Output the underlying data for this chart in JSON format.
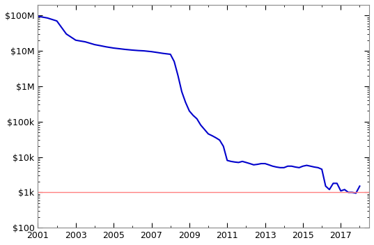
{
  "title": "",
  "line_color": "#0000cc",
  "ref_line_color": "#ff8080",
  "ref_line_value": 1000,
  "background_color": "#ffffff",
  "xlim": [
    2001,
    2018.5
  ],
  "ylim": [
    100,
    200000000
  ],
  "xticks": [
    2001,
    2003,
    2005,
    2007,
    2009,
    2011,
    2013,
    2015,
    2017
  ],
  "ytick_labels": [
    "$100",
    "$1k",
    "$10k",
    "$100k",
    "$1M",
    "$10M",
    "$100M"
  ],
  "ytick_values": [
    100,
    1000,
    10000,
    100000,
    1000000,
    10000000,
    100000000
  ],
  "data": {
    "years": [
      2001.0,
      2001.5,
      2002.0,
      2002.5,
      2003.0,
      2003.5,
      2004.0,
      2004.3,
      2004.6,
      2005.0,
      2005.3,
      2005.6,
      2006.0,
      2006.3,
      2006.6,
      2007.0,
      2007.3,
      2007.6,
      2008.0,
      2008.2,
      2008.4,
      2008.6,
      2008.8,
      2009.0,
      2009.2,
      2009.4,
      2009.6,
      2009.8,
      2010.0,
      2010.2,
      2010.4,
      2010.6,
      2010.8,
      2011.0,
      2011.2,
      2011.4,
      2011.6,
      2011.8,
      2012.0,
      2012.2,
      2012.4,
      2012.6,
      2012.8,
      2013.0,
      2013.2,
      2013.4,
      2013.6,
      2013.8,
      2014.0,
      2014.2,
      2014.4,
      2014.6,
      2014.8,
      2015.0,
      2015.2,
      2015.4,
      2015.6,
      2015.8,
      2016.0,
      2016.2,
      2016.4,
      2016.6,
      2016.8,
      2017.0,
      2017.2,
      2017.4,
      2017.6,
      2017.8,
      2018.0
    ],
    "costs": [
      95000000,
      85000000,
      70000000,
      30000000,
      20000000,
      18000000,
      15000000,
      14000000,
      13000000,
      12000000,
      11500000,
      11000000,
      10500000,
      10200000,
      10000000,
      9500000,
      9000000,
      8500000,
      8000000,
      5000000,
      2000000,
      700000,
      350000,
      200000,
      150000,
      120000,
      80000,
      60000,
      45000,
      40000,
      35000,
      30000,
      20000,
      8000,
      7500,
      7200,
      7000,
      7500,
      7000,
      6500,
      6000,
      6200,
      6500,
      6500,
      6000,
      5500,
      5200,
      5000,
      5000,
      5500,
      5500,
      5200,
      5000,
      5500,
      5800,
      5500,
      5200,
      5000,
      4500,
      1500,
      1200,
      1800,
      1800,
      1100,
      1200,
      1000,
      1000,
      950,
      1500
    ]
  }
}
